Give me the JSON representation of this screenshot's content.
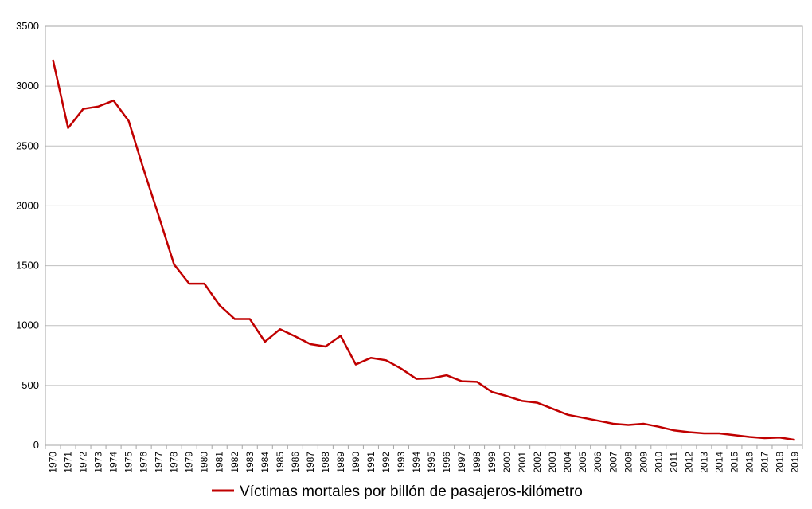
{
  "chart_data": {
    "type": "line",
    "title": "",
    "xlabel": "",
    "ylabel": "",
    "ylim": [
      0,
      3500
    ],
    "yticks": [
      0,
      500,
      1000,
      1500,
      2000,
      2500,
      3000,
      3500
    ],
    "grid": true,
    "legend_position": "bottom",
    "line_color": "#c00000",
    "x": [
      1970,
      1971,
      1972,
      1973,
      1974,
      1975,
      1976,
      1977,
      1978,
      1979,
      1980,
      1981,
      1982,
      1983,
      1984,
      1985,
      1986,
      1987,
      1988,
      1989,
      1990,
      1991,
      1992,
      1993,
      1994,
      1995,
      1996,
      1997,
      1998,
      1999,
      2000,
      2001,
      2002,
      2003,
      2004,
      2005,
      2006,
      2007,
      2008,
      2009,
      2010,
      2011,
      2012,
      2013,
      2014,
      2015,
      2016,
      2017,
      2018,
      2019
    ],
    "series": [
      {
        "name": "Víctimas mortales por billón de pasajeros-kilómetro",
        "values": [
          3220,
          2650,
          2810,
          2830,
          2880,
          2710,
          2300,
          1910,
          1510,
          1350,
          1350,
          1170,
          1055,
          1055,
          865,
          970,
          910,
          845,
          825,
          915,
          675,
          730,
          710,
          640,
          555,
          560,
          585,
          535,
          530,
          445,
          410,
          370,
          355,
          305,
          255,
          230,
          205,
          180,
          170,
          180,
          155,
          125,
          110,
          100,
          100,
          85,
          70,
          60,
          65,
          45
        ]
      }
    ]
  }
}
